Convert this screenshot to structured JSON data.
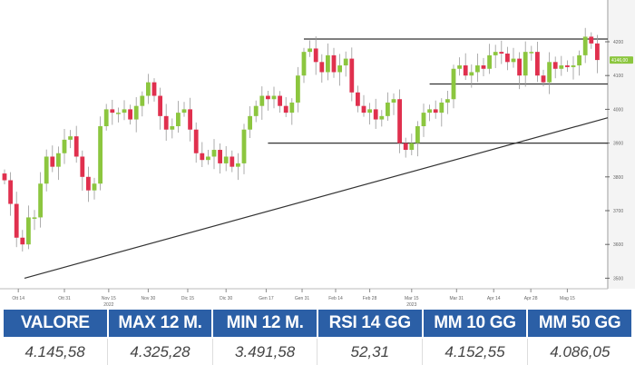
{
  "chart_data": {
    "type": "candlestick",
    "y_ticks": [
      3500,
      3600,
      3700,
      3800,
      3900,
      4000,
      4100,
      4200
    ],
    "ylim": [
      3470,
      4230
    ],
    "x_ticks": [
      "Ott 14",
      "Ott 31",
      "Nov 15",
      "Nov 30",
      "Dic 15",
      "Dic 30",
      "Gen 17",
      "Gen 31",
      "Feb 14",
      "Feb 28",
      "Mar 15",
      "Mar 31",
      "Apr 14",
      "Apr 28",
      "Mag 15"
    ],
    "years": [
      {
        "label": "2022",
        "under": "Nov 15"
      },
      {
        "label": "2023",
        "under": "Mar 15"
      }
    ],
    "last_price_label": "4146,00",
    "closes": [
      3790,
      3720,
      3620,
      3600,
      3680,
      3680,
      3780,
      3860,
      3830,
      3870,
      3910,
      3920,
      3860,
      3800,
      3760,
      3780,
      3950,
      4000,
      3990,
      3990,
      4000,
      3970,
      4010,
      4040,
      4080,
      4040,
      3980,
      3940,
      3950,
      3990,
      4000,
      3940,
      3870,
      3850,
      3860,
      3880,
      3840,
      3860,
      3830,
      3840,
      3940,
      3980,
      4010,
      4040,
      4030,
      4040,
      4010,
      3990,
      4020,
      4100,
      4170,
      4180,
      4140,
      4110,
      4160,
      4110,
      4130,
      4150,
      4050,
      4010,
      3990,
      4000,
      3970,
      3980,
      4020,
      4030,
      3900,
      3880,
      3900,
      3950,
      3990,
      4000,
      3990,
      4020,
      4030,
      4120,
      4130,
      4100,
      4110,
      4130,
      4120,
      4160,
      4170,
      4165,
      4140,
      4150,
      4100,
      4170,
      4170,
      4100,
      4080,
      4140,
      4120,
      4130,
      4125,
      4130,
      4160,
      4215,
      4195,
      4146
    ],
    "horizontal_levels": [
      4208,
      4075,
      3900
    ],
    "trend_line": {
      "from": 3500,
      "to": 3975
    },
    "colors": {
      "up": "#8cc63f",
      "down": "#e0304e",
      "lines": "#333333"
    },
    "grid": false
  },
  "table": {
    "headers": [
      "VALORE",
      "MAX 12 M.",
      "MIN 12 M.",
      "RSI 14 GG",
      "MM 10 GG",
      "MM 50 GG"
    ],
    "values": [
      "4.145,58",
      "4.325,28",
      "3.491,58",
      "52,31",
      "4.152,55",
      "4.086,05"
    ]
  }
}
